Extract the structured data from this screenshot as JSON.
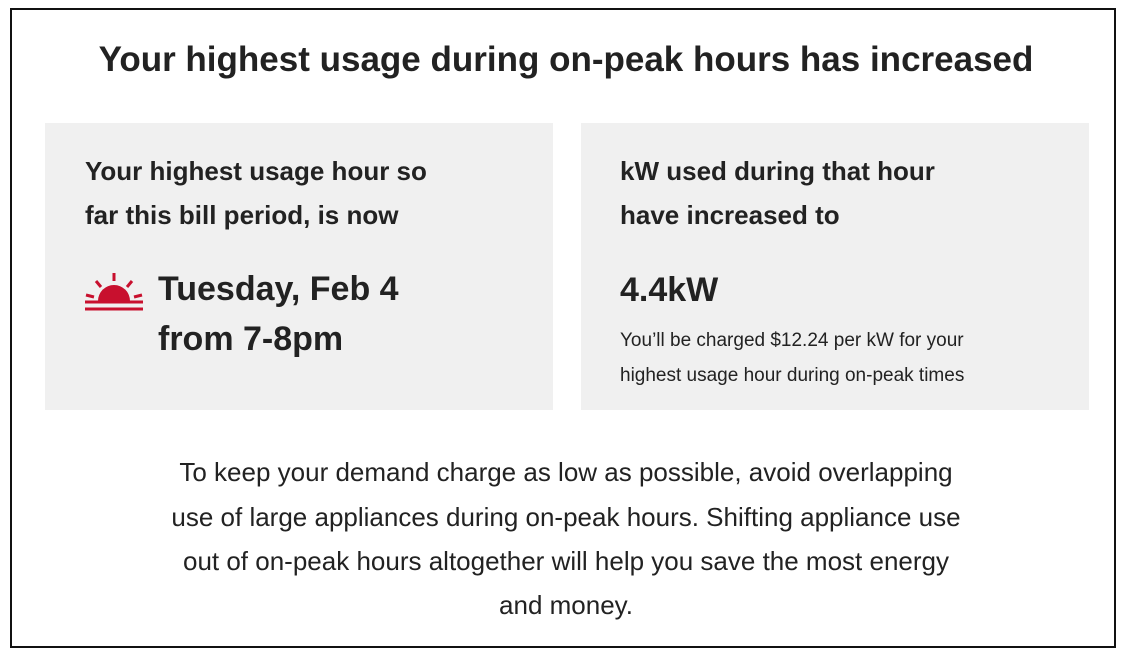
{
  "title": "Your highest usage during on-peak hours has increased",
  "left_card": {
    "heading": [
      "Your highest usage hour so",
      "far this bill period, is now"
    ],
    "value": [
      "Tuesday, Feb 4",
      "from 7-8pm"
    ]
  },
  "right_card": {
    "heading": [
      "kW used during that hour",
      "have increased to"
    ],
    "value": "4.4kW",
    "note": [
      "You’ll be charged $12.24 per kW for your",
      "highest usage hour during on-peak times"
    ]
  },
  "footer": [
    "To keep your demand charge as low as possible, avoid overlapping",
    "use of large appliances during on-peak hours. Shifting appliance use",
    "out of on-peak hours altogether will help you save the most energy",
    "and money."
  ]
}
